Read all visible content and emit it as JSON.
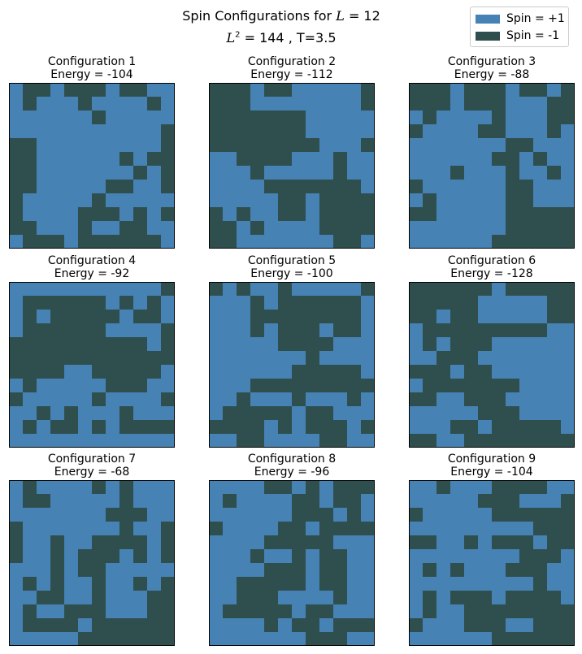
{
  "figure": {
    "title_prefix": "Spin Configurations for",
    "title_L": "L",
    "title_L_value": "= 12",
    "subtitle_L": "L",
    "subtitle_rest": "= 144 , T=3.5"
  },
  "legend": {
    "placement": "top-right",
    "items": [
      {
        "label": "Spin = +1",
        "color": "#4682b4"
      },
      {
        "label": "Spin = -1",
        "color": "#2f4f4f"
      }
    ]
  },
  "chart_data": {
    "type": "heatmap",
    "lattice_size": 12,
    "colors": {
      "+1": "#4682b4",
      "-1": "#2f4f4f"
    },
    "configurations": [
      {
        "title": "Configuration 1",
        "energy_label": "Energy = -104",
        "rows": [
          "+--+---+--++",
          "+-+++-++++-+",
          "++++++-+++++",
          "+++++++++++-",
          "--+++++++++-",
          "--++++++-+--",
          "--+++++++-+-",
          "--+++++--++-",
          "-+++++-+++++",
          "-++++---+-+-",
          "--+++-++--++",
          "+---+------+"
        ]
      },
      {
        "title": "Configuration 2",
        "energy_label": "Energy = -112",
        "rows": [
          "---+--+++++-",
          "---++++++++-",
          "-------+++++",
          "-------+++++",
          "--------+++-",
          "++----+++-++",
          "+++-+++++-++",
          "++++-------+",
          "+++++--+----",
          "-+-++--+----",
          "--+-++++----",
          "--+++++++--+"
        ]
      },
      {
        "title": "Configuration 3",
        "energy_label": "Energy = -88",
        "rows": [
          "---+---+--+-",
          "---+---+++--",
          "+-++++-+++--",
          "-++++--+++-+",
          "+++++++--+++",
          "++++++--+-++",
          "+++-+++-++-+",
          "-++++++--+++",
          "+-+++++--+++",
          "--+++++-----",
          "+++++++-----",
          "++++++------"
        ]
      },
      {
        "title": "Configuration 4",
        "energy_label": "Energy = -92",
        "rows": [
          "+++++++++++-",
          "+------+-+-+",
          "+-+-----+--+",
          "+------++++-",
          "----------+-",
          "------------",
          "----++-----+",
          "+-+++++---++",
          "-+++++-++++-",
          "++-+-+++-+++",
          "+-+--+-+----",
          "++++++++++++"
        ]
      },
      {
        "title": "Configuration 5",
        "energy_label": "Energy = -100",
        "rows": [
          "-+-++-+++++-",
          "+++-+------+",
          "+++--------+",
          "+++-+---+--+",
          "+++++----+++",
          "+++++++-++++",
          "++++++-----+",
          "+++---------",
          "++-+++-+++-+",
          "+-----+--+++",
          "----+-+---+-",
          "++--++++--++"
        ]
      },
      {
        "title": "Configuration 6",
        "energy_label": "Energy = -128",
        "rows": [
          "------+-----",
          "-----+++++--",
          "--+--+++++--",
          "+---------++",
          "+-+---++++++",
          "++---+++++++",
          "---+--++++++",
          "+-------++++",
          "--++---+++++",
          "+++++---++++",
          "+++--+-----+",
          "--++--------"
        ]
      },
      {
        "title": "Configuration 7",
        "energy_label": "Energy = -68",
        "rows": [
          "+-++++-+-+++",
          "+--+++++-+++",
          "+++++++---++",
          "-+++++++-++-",
          "-++-++----+-",
          "-++-+---+-+-",
          "+++-+--+++++",
          "+-+-++-++-+-",
          "++--++-+++--",
          "+-++---+++--",
          "+----+------",
          "+++++-------"
        ]
      },
      {
        "title": "Configuration 8",
        "energy_label": "Energy = -96",
        "rows": [
          "++++--+-+---",
          "+-++++--+--+",
          "++++++---+-+",
          "-++++--+----",
          "++++-----+++",
          "+++-++-+--++",
          "++++---+--++",
          "++-----+--++",
          "++---++++-++",
          "+-----+--+++",
          "++++-+--+---",
          "+++++++---++"
        ]
      },
      {
        "title": "Configuration 9",
        "energy_label": "Energy = -104",
        "rows": [
          "++-+++----++",
          "+++++---+++-",
          "-+++++------",
          "+++++++++---",
          "--++-+---+--",
          "++++++++---+",
          "+-+-+++---++",
          "+++++++++-++",
          "+-+---+----+",
          "+-++--------",
          "-+++---++---",
          "++++++------"
        ]
      }
    ]
  }
}
